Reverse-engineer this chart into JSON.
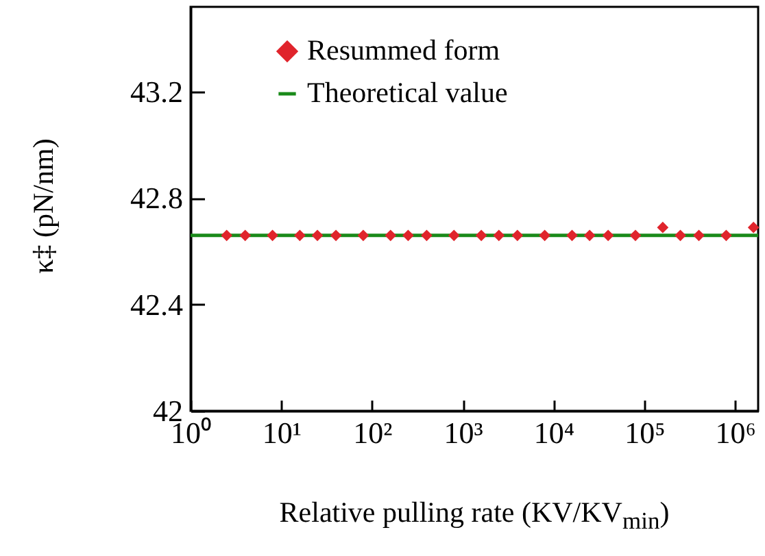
{
  "chart_data": {
    "type": "scatter",
    "xlabel": "Relative pulling rate (KV/KV$_{min}$)",
    "ylabel": "κ‡ (pN/nm)",
    "log": "x",
    "xlim": [
      1,
      1800000
    ],
    "ylim": [
      42,
      43.52
    ],
    "xticks": [
      {
        "value": 1,
        "label": "10⁰"
      },
      {
        "value": 10,
        "label": "10¹"
      },
      {
        "value": 100,
        "label": "10²"
      },
      {
        "value": 1000,
        "label": "10³"
      },
      {
        "value": 10000,
        "label": "10⁴"
      },
      {
        "value": 100000,
        "label": "10⁵"
      },
      {
        "value": 1000000,
        "label": "10⁶"
      }
    ],
    "yticks": [
      42,
      42.4,
      42.8,
      43.2
    ],
    "legend": "top",
    "marker": "diamond",
    "grid": false,
    "series": [
      {
        "name": "Resummed form",
        "color": "#e0242c",
        "x": [
          2.5,
          4,
          8,
          16,
          25,
          40,
          80,
          160,
          250,
          400,
          800,
          1600,
          2500,
          4000,
          8000,
          16000,
          25000,
          40000,
          80000,
          160000,
          250000,
          400000,
          800000,
          1600000
        ],
        "values": [
          42.66,
          42.66,
          42.66,
          42.66,
          42.66,
          42.66,
          42.66,
          42.66,
          42.66,
          42.66,
          42.66,
          42.66,
          42.66,
          42.66,
          42.66,
          42.66,
          42.66,
          42.66,
          42.66,
          42.69,
          42.66,
          42.66,
          42.66,
          42.69
        ]
      },
      {
        "name": "Theoretical value",
        "type": "line",
        "marker": "none",
        "color": "#1a8a1a",
        "x": [
          1,
          1800000
        ],
        "values": [
          42.66,
          42.66
        ]
      }
    ]
  }
}
